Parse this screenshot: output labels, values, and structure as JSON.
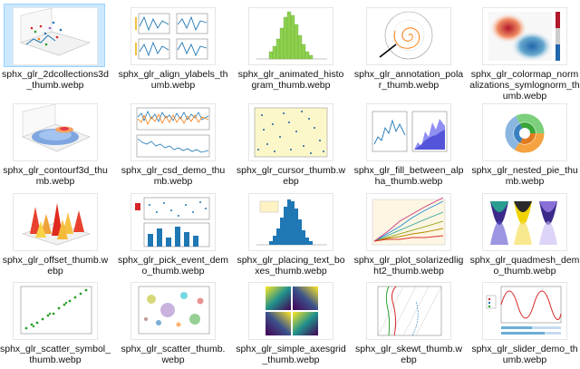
{
  "files": [
    {
      "name": "sphx_glr_2dcollections3d_thumb.webp",
      "icon": "3d-scatter-thumbnail",
      "selected": true
    },
    {
      "name": "sphx_glr_align_ylabels_thumb.webp",
      "icon": "subplot-lines-thumbnail",
      "selected": false
    },
    {
      "name": "sphx_glr_animated_histogram_thumb.webp",
      "icon": "green-histogram-thumbnail",
      "selected": false
    },
    {
      "name": "sphx_glr_annotation_polar_thumb.webp",
      "icon": "polar-spiral-thumbnail",
      "selected": false
    },
    {
      "name": "sphx_glr_colormap_normalizations_symlognorm_thumb.webp",
      "icon": "colormap-thumbnail",
      "selected": false
    },
    {
      "name": "sphx_glr_contourf3d_thumb.webp",
      "icon": "3d-contour-thumbnail",
      "selected": false
    },
    {
      "name": "sphx_glr_csd_demo_thumb.webp",
      "icon": "csd-lines-thumbnail",
      "selected": false
    },
    {
      "name": "sphx_glr_cursor_thumb.webp",
      "icon": "cursor-scatter-thumbnail",
      "selected": false
    },
    {
      "name": "sphx_glr_fill_between_alpha_thumb.webp",
      "icon": "fill-between-thumbnail",
      "selected": false
    },
    {
      "name": "sphx_glr_nested_pie_thumb.webp",
      "icon": "nested-pie-thumbnail",
      "selected": false
    },
    {
      "name": "sphx_glr_offset_thumb.webp",
      "icon": "3d-bars-thumbnail",
      "selected": false
    },
    {
      "name": "sphx_glr_pick_event_demo_thumb.webp",
      "icon": "pick-event-thumbnail",
      "selected": false
    },
    {
      "name": "sphx_glr_placing_text_boxes_thumb.webp",
      "icon": "blue-histogram-thumbnail",
      "selected": false
    },
    {
      "name": "sphx_glr_plot_solarizedlight2_thumb.webp",
      "icon": "random-lines-thumbnail",
      "selected": false
    },
    {
      "name": "sphx_glr_quadmesh_demo_thumb.webp",
      "icon": "quadmesh-thumbnail",
      "selected": false
    },
    {
      "name": "sphx_glr_scatter_symbol_thumb.webp",
      "icon": "clover-scatter-thumbnail",
      "selected": false
    },
    {
      "name": "sphx_glr_scatter_thumb.webp",
      "icon": "bubble-scatter-thumbnail",
      "selected": false
    },
    {
      "name": "sphx_glr_simple_axesgrid_thumb.webp",
      "icon": "axesgrid-thumbnail",
      "selected": false
    },
    {
      "name": "sphx_glr_skewt_thumb.webp",
      "icon": "skewt-thumbnail",
      "selected": false
    },
    {
      "name": "sphx_glr_slider_demo_thumb.webp",
      "icon": "slider-sine-thumbnail",
      "selected": false
    }
  ]
}
